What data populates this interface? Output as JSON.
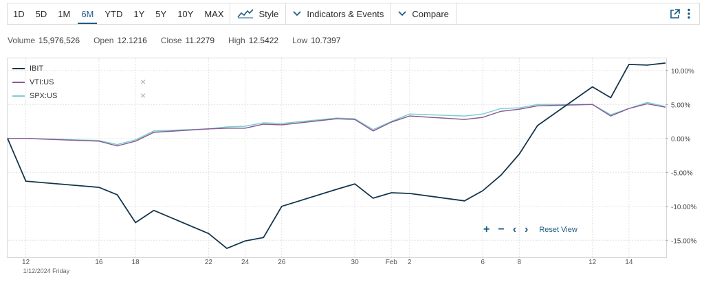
{
  "toolbar": {
    "ranges": [
      "1D",
      "5D",
      "1M",
      "6M",
      "YTD",
      "1Y",
      "5Y",
      "10Y",
      "MAX"
    ],
    "active_range": "6M",
    "style_label": "Style",
    "indicators_label": "Indicators & Events",
    "compare_label": "Compare"
  },
  "stats": {
    "volume_label": "Volume",
    "volume": "15,976,526",
    "open_label": "Open",
    "open": "12.1216",
    "close_label": "Close",
    "close": "11.2279",
    "high_label": "High",
    "high": "12.5422",
    "low_label": "Low",
    "low": "10.7397"
  },
  "legend": {
    "items": [
      {
        "name": "IBIT",
        "removable": false
      },
      {
        "name": "VTI:US",
        "removable": true
      },
      {
        "name": "SPX:US",
        "removable": true
      }
    ]
  },
  "controls": {
    "zoom_in": "+",
    "zoom_out": "−",
    "prev": "‹",
    "next": "›",
    "reset_label": "Reset View"
  },
  "colors": {
    "IBIT": "#13354b",
    "VTI:US": "#8b5c94",
    "SPX:US": "#7ccfd0",
    "accent": "#1a5b84"
  },
  "chart_data": {
    "type": "line",
    "x": [
      "2024-01-11",
      "2024-01-12",
      "2024-01-16",
      "2024-01-17",
      "2024-01-18",
      "2024-01-19",
      "2024-01-22",
      "2024-01-23",
      "2024-01-24",
      "2024-01-25",
      "2024-01-26",
      "2024-01-29",
      "2024-01-30",
      "2024-01-31",
      "2024-02-01",
      "2024-02-02",
      "2024-02-05",
      "2024-02-06",
      "2024-02-07",
      "2024-02-08",
      "2024-02-09",
      "2024-02-12",
      "2024-02-13",
      "2024-02-14",
      "2024-02-15",
      "2024-02-16"
    ],
    "x_tick_labels": [
      "12",
      "16",
      "18",
      "22",
      "24",
      "26",
      "30",
      "Feb",
      "2",
      "6",
      "8",
      "12",
      "14"
    ],
    "x_tick_dates": [
      "2024-01-12",
      "2024-01-16",
      "2024-01-18",
      "2024-01-22",
      "2024-01-24",
      "2024-01-26",
      "2024-01-30",
      "2024-02-01",
      "2024-02-02",
      "2024-02-06",
      "2024-02-08",
      "2024-02-12",
      "2024-02-14"
    ],
    "x_sub_label": "1/12/2024 Friday",
    "y_tick_labels": [
      "10.00%",
      "5.00%",
      "0.00%",
      "-5.00%",
      "-10.00%",
      "-15.00%"
    ],
    "y_tick_values": [
      10,
      5,
      0,
      -5,
      -10,
      -15
    ],
    "ylim": [
      -17.5,
      11.8
    ],
    "grid": true,
    "legend_position": "top-left",
    "series": [
      {
        "name": "IBIT",
        "values": [
          0,
          -6.3,
          -7.2,
          -8.3,
          -12.4,
          -10.6,
          -14.0,
          -16.2,
          -15.1,
          -14.6,
          -10.0,
          -7.5,
          -6.7,
          -8.8,
          -8.0,
          -8.1,
          -9.2,
          -7.7,
          -5.4,
          -2.3,
          1.9,
          7.6,
          6.0,
          10.9,
          10.8,
          11.1
        ]
      },
      {
        "name": "VTI:US",
        "values": [
          0,
          0,
          -0.4,
          -1.1,
          -0.4,
          0.9,
          1.4,
          1.5,
          1.5,
          2.1,
          2.0,
          2.9,
          2.8,
          1.1,
          2.4,
          3.3,
          2.8,
          3.1,
          4.0,
          4.3,
          4.8,
          5.0,
          3.3,
          4.4,
          5.1,
          4.6
        ]
      },
      {
        "name": "SPX:US",
        "values": [
          0,
          0,
          -0.3,
          -0.9,
          -0.2,
          1.1,
          1.4,
          1.7,
          1.8,
          2.3,
          2.2,
          3.0,
          2.9,
          1.3,
          2.5,
          3.6,
          3.3,
          3.6,
          4.4,
          4.5,
          5.0,
          5.0,
          3.5,
          4.4,
          5.3,
          4.7
        ]
      }
    ]
  }
}
